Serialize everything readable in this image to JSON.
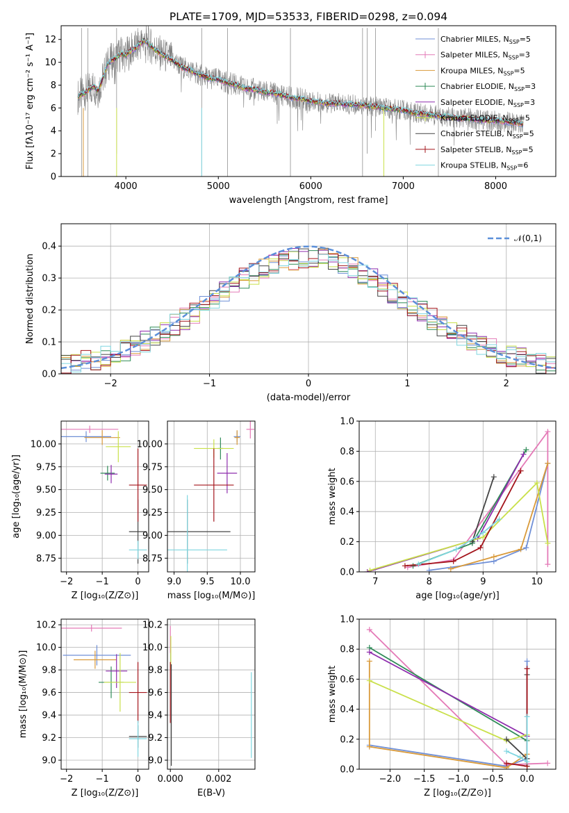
{
  "title": "PLATE=1709, MJD=53533, FIBERID=0298, z=0.094",
  "chart_data": [
    {
      "id": "spectrum",
      "type": "line",
      "xlabel": "wavelength [Angstrom, rest frame]",
      "ylabel": "Flux [fλ10⁻¹⁷ erg cm⁻² s⁻¹ A⁻¹]",
      "xlim": [
        3300,
        8650
      ],
      "ylim": [
        0,
        13.2
      ],
      "xticks": [
        4000,
        5000,
        6000,
        7000,
        8000
      ],
      "yticks": [
        0,
        2,
        4,
        6,
        8,
        10,
        12
      ],
      "grid": false,
      "legend_position": "top-right",
      "data_series": {
        "name": "observed spectrum",
        "color": "#808080",
        "x": [
          3480,
          3550,
          3600,
          3650,
          3700,
          3750,
          3800,
          3850,
          3900,
          3950,
          4000,
          4050,
          4100,
          4150,
          4200,
          4300,
          4400,
          4500,
          4600,
          4700,
          4800,
          4900,
          5000,
          5100,
          5200,
          5300,
          5400,
          5500,
          5600,
          5700,
          5800,
          5900,
          6000,
          6100,
          6200,
          6300,
          6400,
          6500,
          6600,
          6700,
          6800,
          6900,
          7000,
          7100,
          7200,
          7300,
          7400,
          7500,
          7600,
          7700,
          7800,
          7900,
          8000,
          8100,
          8200,
          8300
        ],
        "y": [
          7.0,
          7.3,
          7.6,
          7.9,
          7.5,
          8.6,
          9.8,
          10.2,
          10.4,
          10.8,
          10.6,
          11.0,
          11.2,
          11.6,
          11.9,
          11.2,
          10.6,
          10.2,
          9.6,
          9.3,
          8.9,
          8.6,
          8.5,
          8.2,
          8.0,
          7.7,
          7.6,
          7.4,
          7.3,
          7.1,
          6.9,
          6.8,
          6.6,
          6.5,
          6.4,
          6.4,
          6.3,
          6.3,
          6.2,
          6.1,
          6.0,
          5.9,
          5.8,
          5.6,
          5.5,
          5.4,
          5.3,
          5.2,
          5.1,
          5.1,
          5.0,
          4.9,
          4.9,
          4.8,
          4.7,
          4.6
        ]
      },
      "legend": [
        {
          "label": "Chabrier MILES, N",
          "sub": "SSP",
          "tail": "=5",
          "color": "#6f8fd6",
          "marker": "line"
        },
        {
          "label": "Salpeter MILES, N",
          "sub": "SSP",
          "tail": "=3",
          "color": "#e47ab7",
          "marker": "plus"
        },
        {
          "label": "Kroupa MILES, N",
          "sub": "SSP",
          "tail": "=5",
          "color": "#d99a3a",
          "marker": "line"
        },
        {
          "label": "Chabrier ELODIE, N",
          "sub": "SSP",
          "tail": "=3",
          "color": "#2e8b57",
          "marker": "plus"
        },
        {
          "label": "Salpeter ELODIE, N",
          "sub": "SSP",
          "tail": "=3",
          "color": "#8e2cad",
          "marker": "line"
        },
        {
          "label": "Kroupa ELODIE, N",
          "sub": "SSP",
          "tail": "=5",
          "color": "#c9e04a",
          "marker": "plus"
        },
        {
          "label": "Chabrier STELIB, N",
          "sub": "SSP",
          "tail": "=5",
          "color": "#444444",
          "marker": "line"
        },
        {
          "label": "Salpeter STELIB, N",
          "sub": "SSP",
          "tail": "=5",
          "color": "#a3141b",
          "marker": "plus"
        },
        {
          "label": "Kroupa STELIB, N",
          "sub": "SSP",
          "tail": "=6",
          "color": "#7fd6e0",
          "marker": "line"
        }
      ]
    },
    {
      "id": "residual-histogram",
      "type": "bar",
      "xlabel": "(data-model)/error",
      "ylabel": "Normed distribution",
      "xlim": [
        -2.5,
        2.5
      ],
      "ylim": [
        0,
        0.47
      ],
      "xticks": [
        -2,
        -1,
        0,
        1,
        2
      ],
      "yticks": [
        0.0,
        0.1,
        0.2,
        0.3,
        0.4
      ],
      "grid": true,
      "legend_position": "top-right",
      "reference_curve": {
        "name": "𝒩(0,1)",
        "mean": 0,
        "sigma": 1,
        "color": "#5b8fd9"
      },
      "bin_width": 0.1,
      "bin_start": -2.5
    },
    {
      "id": "age-vs-Z",
      "type": "scatter",
      "xlabel": "Z [log₁₀(Z/Z⊙)]",
      "ylabel": "age  [log₁₀(age/yr)]",
      "xlim": [
        -2.15,
        0.3
      ],
      "ylim": [
        8.6,
        10.25
      ],
      "xticks": [
        -2,
        -1,
        0
      ],
      "yticks": [
        8.75,
        9.0,
        9.25,
        9.5,
        9.75,
        10.0
      ],
      "grid": true,
      "points": [
        {
          "x": -1.45,
          "y": 10.08,
          "xerr": 0.7,
          "yerr": 0.06,
          "color": "#6f8fd6"
        },
        {
          "x": -1.35,
          "y": 10.16,
          "xerr": 0.8,
          "yerr": 0.04,
          "color": "#e47ab7"
        },
        {
          "x": -1.0,
          "y": 10.07,
          "xerr": 0.5,
          "yerr": 0.08,
          "color": "#d99a3a"
        },
        {
          "x": -0.85,
          "y": 9.68,
          "xerr": 0.2,
          "yerr": 0.08,
          "color": "#2e8b57"
        },
        {
          "x": -0.75,
          "y": 9.67,
          "xerr": 0.18,
          "yerr": 0.1,
          "color": "#8e2cad"
        },
        {
          "x": -0.55,
          "y": 9.97,
          "xerr": 0.35,
          "yerr": 0.17,
          "color": "#c9e04a"
        },
        {
          "x": 0.0,
          "y": 9.04,
          "xerr": 0.25,
          "yerr": 0.35,
          "color": "#444444"
        },
        {
          "x": 0.0,
          "y": 9.55,
          "xerr": 0.25,
          "yerr": 0.4,
          "color": "#a3141b"
        },
        {
          "x": 0.0,
          "y": 8.84,
          "xerr": 0.25,
          "yerr": 0.1,
          "color": "#7fd6e0"
        }
      ]
    },
    {
      "id": "age-vs-mass",
      "type": "scatter",
      "xlabel": "mass [log₁₀(M/M⊙)]",
      "ylabel": "",
      "xlim": [
        8.9,
        10.22
      ],
      "ylim": [
        8.6,
        10.25
      ],
      "xticks": [
        9.0,
        9.5,
        10.0
      ],
      "yticks": [
        8.75,
        9.0,
        9.25,
        9.5,
        9.75,
        10.0
      ],
      "grid": true,
      "points": [
        {
          "x": 9.95,
          "y": 10.08,
          "xerr": 0.05,
          "yerr": 0.06,
          "color": "#6f8fd6"
        },
        {
          "x": 10.15,
          "y": 10.16,
          "xerr": 0.06,
          "yerr": 0.1,
          "color": "#e47ab7"
        },
        {
          "x": 9.95,
          "y": 10.07,
          "xerr": 0.04,
          "yerr": 0.08,
          "color": "#d99a3a"
        },
        {
          "x": 9.7,
          "y": 9.95,
          "xerr": 0.04,
          "yerr": 0.12,
          "color": "#2e8b57"
        },
        {
          "x": 9.8,
          "y": 9.68,
          "xerr": 0.15,
          "yerr": 0.22,
          "color": "#8e2cad"
        },
        {
          "x": 9.6,
          "y": 9.95,
          "xerr": 0.3,
          "yerr": 0.1,
          "color": "#c9e04a"
        },
        {
          "x": 9.2,
          "y": 9.04,
          "xerr": 0.65,
          "yerr": 0.35,
          "color": "#444444"
        },
        {
          "x": 9.6,
          "y": 9.55,
          "xerr": 0.3,
          "yerr": 0.4,
          "color": "#a3141b"
        },
        {
          "x": 9.2,
          "y": 8.84,
          "xerr": 0.6,
          "yerr": 0.6,
          "color": "#7fd6e0"
        }
      ]
    },
    {
      "id": "weight-vs-age",
      "type": "line",
      "xlabel": "age  [log₁₀(age/yr)]",
      "ylabel": "mass weight",
      "xlim": [
        6.7,
        10.35
      ],
      "ylim": [
        0,
        1.0
      ],
      "xticks": [
        7,
        8,
        9,
        10
      ],
      "yticks": [
        0.0,
        0.2,
        0.4,
        0.6,
        0.8,
        1.0
      ],
      "grid": true,
      "series": [
        {
          "color": "#6f8fd6",
          "x": [
            8.0,
            9.2,
            9.8,
            10.2
          ],
          "y": [
            0.01,
            0.07,
            0.16,
            0.72
          ]
        },
        {
          "color": "#e47ab7",
          "x": [
            7.6,
            8.45,
            10.2,
            10.2
          ],
          "y": [
            0.03,
            0.08,
            0.93,
            0.05
          ]
        },
        {
          "color": "#d99a3a",
          "x": [
            8.4,
            9.2,
            9.7,
            10.2
          ],
          "y": [
            0.02,
            0.1,
            0.15,
            0.72
          ]
        },
        {
          "color": "#2e8b57",
          "x": [
            7.7,
            8.8,
            9.8
          ],
          "y": [
            0.04,
            0.19,
            0.81
          ]
        },
        {
          "color": "#8e2cad",
          "x": [
            6.85,
            8.9,
            9.75
          ],
          "y": [
            0.0,
            0.22,
            0.78
          ]
        },
        {
          "color": "#c9e04a",
          "x": [
            6.9,
            9.0,
            10.0,
            10.2
          ],
          "y": [
            0.01,
            0.23,
            0.59,
            0.19
          ]
        },
        {
          "color": "#444444",
          "x": [
            8.8,
            9.2
          ],
          "y": [
            0.2,
            0.63
          ]
        },
        {
          "color": "#a3141b",
          "x": [
            7.55,
            8.45,
            8.95,
            9.7
          ],
          "y": [
            0.04,
            0.07,
            0.16,
            0.67
          ]
        },
        {
          "color": "#7fd6e0",
          "x": [
            7.8,
            8.5,
            9.0,
            9.3
          ],
          "y": [
            0.05,
            0.15,
            0.26,
            0.35
          ]
        }
      ]
    },
    {
      "id": "mass-vs-Z",
      "type": "scatter",
      "xlabel": "Z [log₁₀(Z/Z⊙)]",
      "ylabel": "mass [log₁₀(M/M⊙)]",
      "xlim": [
        -2.15,
        0.3
      ],
      "ylim": [
        8.92,
        10.25
      ],
      "xticks": [
        -2,
        -1,
        0
      ],
      "yticks": [
        9.0,
        9.2,
        9.4,
        9.6,
        9.8,
        10.0,
        10.2
      ],
      "grid": true,
      "points": [
        {
          "x": -1.15,
          "y": 9.93,
          "xerr": 0.95,
          "yerr": 0.09,
          "color": "#6f8fd6"
        },
        {
          "x": -1.3,
          "y": 10.17,
          "xerr": 0.85,
          "yerr": 0.03,
          "color": "#e47ab7"
        },
        {
          "x": -1.2,
          "y": 9.89,
          "xerr": 0.6,
          "yerr": 0.08,
          "color": "#d99a3a"
        },
        {
          "x": -0.75,
          "y": 9.69,
          "xerr": 0.35,
          "yerr": 0.14,
          "color": "#2e8b57"
        },
        {
          "x": -0.6,
          "y": 9.79,
          "xerr": 0.3,
          "yerr": 0.15,
          "color": "#8e2cad"
        },
        {
          "x": -0.5,
          "y": 9.69,
          "xerr": 0.45,
          "yerr": 0.26,
          "color": "#c9e04a"
        },
        {
          "x": 0.0,
          "y": 9.21,
          "xerr": 0.25,
          "yerr": 0.1,
          "color": "#444444"
        },
        {
          "x": 0.0,
          "y": 9.6,
          "xerr": 0.25,
          "yerr": 0.27,
          "color": "#a3141b"
        },
        {
          "x": 0.0,
          "y": 9.19,
          "xerr": 0.25,
          "yerr": 0.16,
          "color": "#7fd6e0"
        }
      ]
    },
    {
      "id": "mass-vs-EBV",
      "type": "scatter",
      "xlabel": "E(B-V)",
      "ylabel": "",
      "xlim": [
        -0.00012,
        0.0035
      ],
      "ylim": [
        8.92,
        10.25
      ],
      "xticks": [
        0.0,
        0.002
      ],
      "xticklabels": [
        "0.000",
        "0.002"
      ],
      "yticks": [
        9.0,
        9.2,
        9.4,
        9.6,
        9.8,
        10.0,
        10.2
      ],
      "grid": true,
      "points": [
        {
          "x": 0.0,
          "y": 10.07,
          "yerr": 0.12,
          "color": "#e47ab7"
        },
        {
          "x": 2e-05,
          "y": 9.95,
          "yerr": 0.15,
          "color": "#c9e04a"
        },
        {
          "x": 0.0,
          "y": 9.6,
          "yerr": 0.27,
          "color": "#a3141b"
        },
        {
          "x": 4e-05,
          "y": 9.4,
          "yerr": 0.45,
          "color": "#444444"
        },
        {
          "x": 0.00335,
          "y": 9.4,
          "yerr": 0.38,
          "color": "#7fd6e0"
        }
      ]
    },
    {
      "id": "weight-vs-Z",
      "type": "line",
      "xlabel": "Z [log₁₀(Z/Z⊙)]",
      "ylabel": "mass weight",
      "xlim": [
        -2.45,
        0.42
      ],
      "ylim": [
        0,
        1.0
      ],
      "xticks": [
        -2.0,
        -1.5,
        -1.0,
        -0.5,
        0.0
      ],
      "yticks": [
        0.0,
        0.2,
        0.4,
        0.6,
        0.8,
        1.0
      ],
      "grid": true,
      "series": [
        {
          "color": "#6f8fd6",
          "x": [
            -2.3,
            -0.3,
            0.0,
            0.0
          ],
          "y": [
            0.16,
            0.02,
            0.07,
            0.72
          ]
        },
        {
          "color": "#e47ab7",
          "x": [
            -2.3,
            -0.3,
            0.3
          ],
          "y": [
            0.93,
            0.03,
            0.04
          ]
        },
        {
          "color": "#d99a3a",
          "x": [
            -2.3,
            -2.3,
            -0.3,
            0.0,
            0.0
          ],
          "y": [
            0.72,
            0.15,
            0.01,
            0.1,
            0.02
          ]
        },
        {
          "color": "#2e8b57",
          "x": [
            -2.3,
            0.0,
            0.0
          ],
          "y": [
            0.81,
            0.19,
            0.02
          ]
        },
        {
          "color": "#8e2cad",
          "x": [
            -2.3,
            0.0
          ],
          "y": [
            0.78,
            0.22
          ]
        },
        {
          "color": "#c9e04a",
          "x": [
            -2.3,
            -0.3,
            0.0
          ],
          "y": [
            0.59,
            0.19,
            0.23
          ]
        },
        {
          "color": "#444444",
          "x": [
            -0.3,
            0.0,
            0.0
          ],
          "y": [
            0.2,
            0.07,
            0.63
          ]
        },
        {
          "color": "#a3141b",
          "x": [
            -0.3,
            0.0,
            0.0
          ],
          "y": [
            0.04,
            0.02,
            0.67
          ]
        },
        {
          "color": "#7fd6e0",
          "x": [
            -0.3,
            -0.1,
            0.0,
            0.0
          ],
          "y": [
            0.12,
            0.08,
            0.05,
            0.35
          ]
        }
      ]
    }
  ]
}
